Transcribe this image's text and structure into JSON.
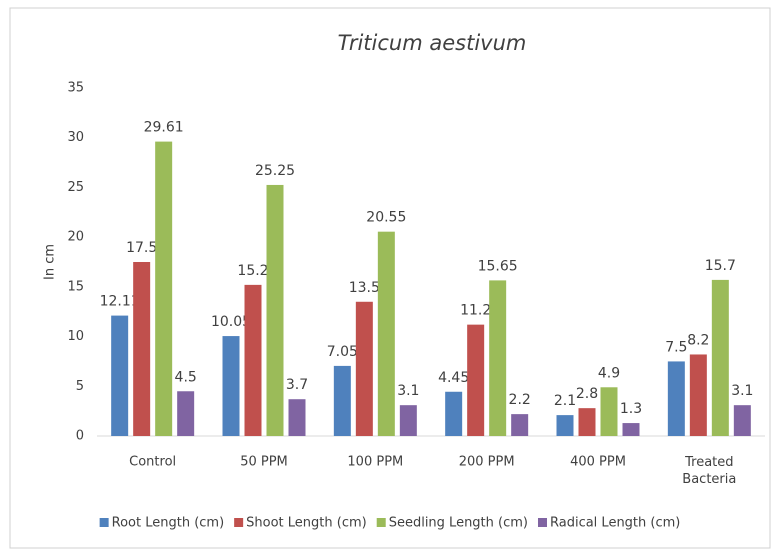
{
  "chart_data": {
    "type": "bar",
    "title": "Triticum aestivum",
    "y_label": "In cm",
    "categories": [
      "Control",
      "50 PPM",
      "100 PPM",
      "200 PPM",
      "400 PPM",
      "Treated Bacteria"
    ],
    "series": [
      {
        "name": "Root Length (cm)",
        "color": "#4f81bd",
        "values": [
          12.11,
          10.05,
          7.05,
          4.45,
          2.1,
          7.5
        ]
      },
      {
        "name": "Shoot Length (cm)",
        "color": "#c0504d",
        "values": [
          17.5,
          15.2,
          13.5,
          11.2,
          2.8,
          8.2
        ]
      },
      {
        "name": "Seedling Length (cm)",
        "color": "#9bbb59",
        "values": [
          29.61,
          25.25,
          20.55,
          15.65,
          4.9,
          15.7
        ]
      },
      {
        "name": "Radical Length (cm)",
        "color": "#8064a2",
        "values": [
          4.5,
          3.7,
          3.1,
          2.2,
          1.3,
          3.1
        ]
      }
    ],
    "ylim": [
      0,
      35
    ],
    "yticks": [
      0,
      5,
      10,
      15,
      20,
      25,
      30,
      35
    ],
    "grid": false,
    "legend": "bottom"
  }
}
